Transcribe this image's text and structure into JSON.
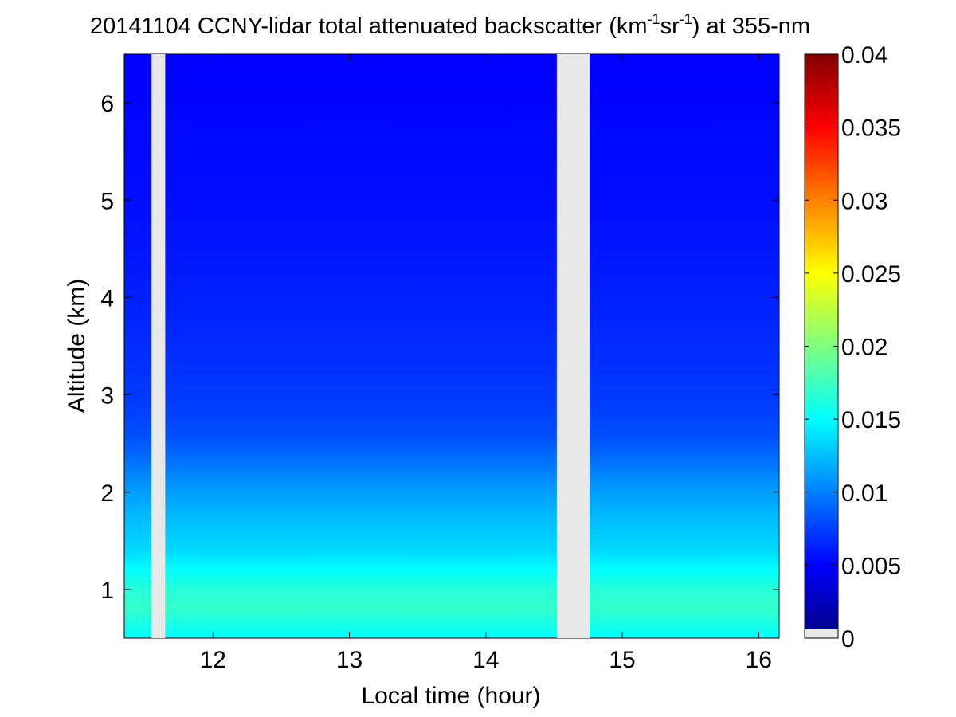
{
  "chart_data": {
    "type": "heatmap",
    "title": {
      "prefix": "20141104 CCNY-lidar total attenuated backscatter (km",
      "sup1": "-1",
      "middle": "sr",
      "sup2": "-1",
      "suffix": ") at 355-nm"
    },
    "xlabel": "Local time (hour)",
    "ylabel": "Altitude (km)",
    "xlim": [
      11.35,
      16.15
    ],
    "ylim": [
      0.5,
      6.5
    ],
    "x_ticks": [
      12,
      13,
      14,
      15,
      16
    ],
    "y_ticks": [
      1,
      2,
      3,
      4,
      5,
      6
    ],
    "colorbar": {
      "colormap": "jet",
      "range": [
        0,
        0.04
      ],
      "ticks": [
        "0",
        "0.005",
        "0.01",
        "0.015",
        "0.02",
        "0.025",
        "0.03",
        "0.035",
        "0.04"
      ],
      "no_data_color": "#e8e8e8"
    },
    "no_data_intervals": [
      [
        11.55,
        11.65
      ],
      [
        14.52,
        14.76
      ]
    ],
    "profile": [
      {
        "altitude": 0.5,
        "value": 0.015
      },
      {
        "altitude": 0.8,
        "value": 0.017
      },
      {
        "altitude": 1.0,
        "value": 0.0165
      },
      {
        "altitude": 1.2,
        "value": 0.015
      },
      {
        "altitude": 1.4,
        "value": 0.0135
      },
      {
        "altitude": 1.7,
        "value": 0.0125
      },
      {
        "altitude": 2.0,
        "value": 0.0112
      },
      {
        "altitude": 2.3,
        "value": 0.0095
      },
      {
        "altitude": 2.6,
        "value": 0.008
      },
      {
        "altitude": 3.0,
        "value": 0.0072
      },
      {
        "altitude": 4.0,
        "value": 0.0062
      },
      {
        "altitude": 5.0,
        "value": 0.0055
      },
      {
        "altitude": 6.5,
        "value": 0.005
      }
    ],
    "grid": false
  }
}
